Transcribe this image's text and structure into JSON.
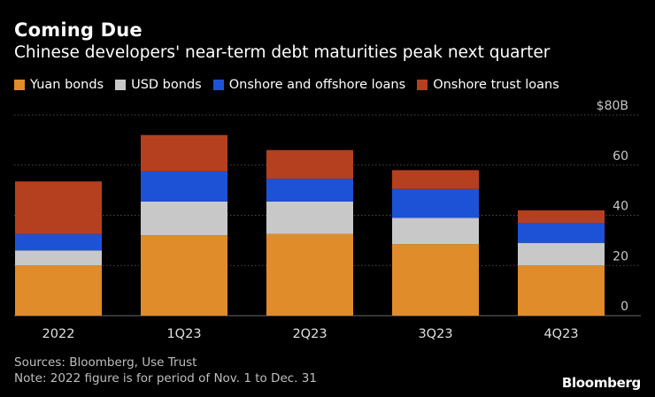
{
  "title": "Coming Due",
  "subtitle": "Chinese developers' near-term debt maturities peak next quarter",
  "legend": [
    {
      "label": "Yuan bonds",
      "color": "#e08c2a"
    },
    {
      "label": "USD bonds",
      "color": "#c8c8c8"
    },
    {
      "label": "Onshore and offshore loans",
      "color": "#1e52d6"
    },
    {
      "label": "Onshore trust loans",
      "color": "#b5401f"
    }
  ],
  "chart_data": {
    "type": "bar",
    "stacked": true,
    "title": "Coming Due",
    "subtitle": "Chinese developers' near-term debt maturities peak next quarter",
    "categories": [
      "2022",
      "1Q23",
      "2Q23",
      "3Q23",
      "4Q23"
    ],
    "series": [
      {
        "name": "Yuan bonds",
        "color": "#e08c2a",
        "values": [
          20,
          32,
          32.5,
          28.5,
          20
        ]
      },
      {
        "name": "USD bonds",
        "color": "#c8c8c8",
        "values": [
          6,
          13.5,
          13,
          10.5,
          9
        ]
      },
      {
        "name": "Onshore and offshore loans",
        "color": "#1e52d6",
        "values": [
          6.5,
          12,
          9,
          11.5,
          8
        ]
      },
      {
        "name": "Onshore trust loans",
        "color": "#b5401f",
        "values": [
          21,
          14.5,
          11.5,
          7.5,
          5
        ]
      }
    ],
    "ylim": [
      0,
      80
    ],
    "yticks": [
      0,
      20,
      40,
      60,
      80
    ],
    "ytick_labels": [
      "0",
      "20",
      "40",
      "60",
      "$80B"
    ],
    "gridlines": true,
    "y_axis_position": "right"
  },
  "footer": {
    "source": "Sources: Bloomberg, Use Trust",
    "note": "Note: 2022 figure is for period of Nov. 1 to Dec. 31"
  },
  "brand": "Bloomberg"
}
